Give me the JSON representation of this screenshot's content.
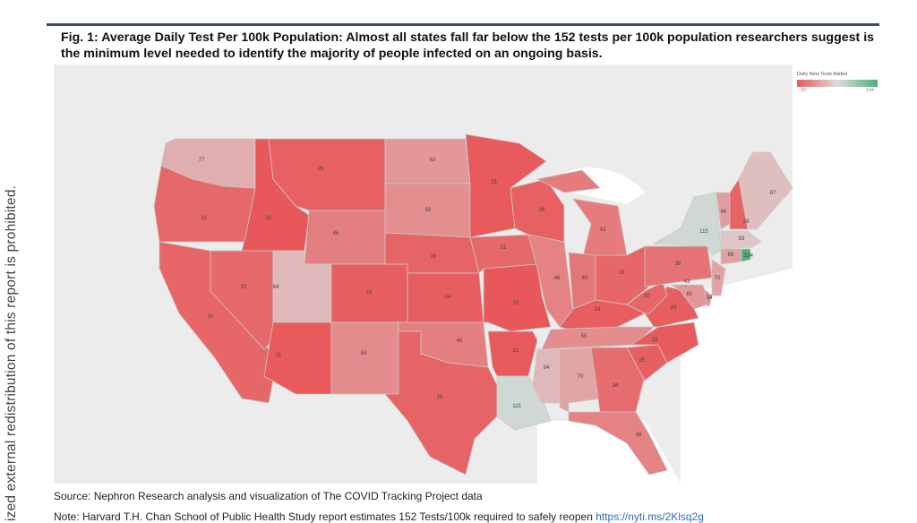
{
  "title": "Fig. 1:  Average Daily Test Per 100k Population: Almost all states fall far below the 152 tests per 100k population researchers suggest is the minimum level needed to identify the majority of people infected on an ongoing basis.",
  "side_text": "ized external redistribution of this report is prohibited.",
  "legend": {
    "title": "Daily New Tests Added",
    "min": "20",
    "max": "194",
    "min_value": 20,
    "max_value": 194,
    "colors": {
      "low": "#e8585a",
      "mid": "#dcdcdc",
      "high": "#4cb07a"
    }
  },
  "source": "Source: Nephron Research analysis and visualization of The COVID Tracking Project data",
  "note": "Note: Harvard T.H. Chan School of Public Health Study report estimates 152 Tests/100k required to safely reopen ",
  "note_link": "https://nyti.ms/2Klsq2g",
  "chart_data": {
    "type": "choropleth",
    "metric": "Daily New Tests Added per 100k",
    "states": [
      {
        "state": "WA",
        "value": 77
      },
      {
        "state": "OR",
        "value": 31
      },
      {
        "state": "CA",
        "value": 30
      },
      {
        "state": "ID",
        "value": 20
      },
      {
        "state": "NV",
        "value": 32
      },
      {
        "state": "MT",
        "value": 26
      },
      {
        "state": "WY",
        "value": 46
      },
      {
        "state": "UT",
        "value": 84
      },
      {
        "state": "AZ",
        "value": 21
      },
      {
        "state": "CO",
        "value": 24
      },
      {
        "state": "NM",
        "value": 54
      },
      {
        "state": "ND",
        "value": 62
      },
      {
        "state": "SD",
        "value": 56
      },
      {
        "state": "NE",
        "value": 28
      },
      {
        "state": "KS",
        "value": 24
      },
      {
        "state": "OK",
        "value": 46
      },
      {
        "state": "TX",
        "value": 28
      },
      {
        "state": "MN",
        "value": 21
      },
      {
        "state": "IA",
        "value": 31
      },
      {
        "state": "MO",
        "value": 20
      },
      {
        "state": "AR",
        "value": 21
      },
      {
        "state": "LA",
        "value": 115
      },
      {
        "state": "WI",
        "value": 26
      },
      {
        "state": "IL",
        "value": 48
      },
      {
        "state": "MI",
        "value": 43
      },
      {
        "state": "IN",
        "value": 40
      },
      {
        "state": "OH",
        "value": 29
      },
      {
        "state": "KY",
        "value": 24
      },
      {
        "state": "TN",
        "value": 55
      },
      {
        "state": "MS",
        "value": 84
      },
      {
        "state": "AL",
        "value": 70
      },
      {
        "state": "GA",
        "value": 34
      },
      {
        "state": "FL",
        "value": 48
      },
      {
        "state": "SC",
        "value": 25
      },
      {
        "state": "NC",
        "value": 22
      },
      {
        "state": "VA",
        "value": 24
      },
      {
        "state": "WV",
        "value": 30
      },
      {
        "state": "PA",
        "value": 38
      },
      {
        "state": "NY",
        "value": 115
      },
      {
        "state": "VT",
        "value": 66
      },
      {
        "state": "NH",
        "value": 28
      },
      {
        "state": "ME",
        "value": 87
      },
      {
        "state": "MA",
        "value": 93
      },
      {
        "state": "CT",
        "value": 68
      },
      {
        "state": "RI",
        "value": 194
      },
      {
        "state": "NJ",
        "value": 70
      },
      {
        "state": "DE",
        "value": 54
      },
      {
        "state": "MD",
        "value": 61
      },
      {
        "state": "DC",
        "value": 43
      }
    ]
  }
}
